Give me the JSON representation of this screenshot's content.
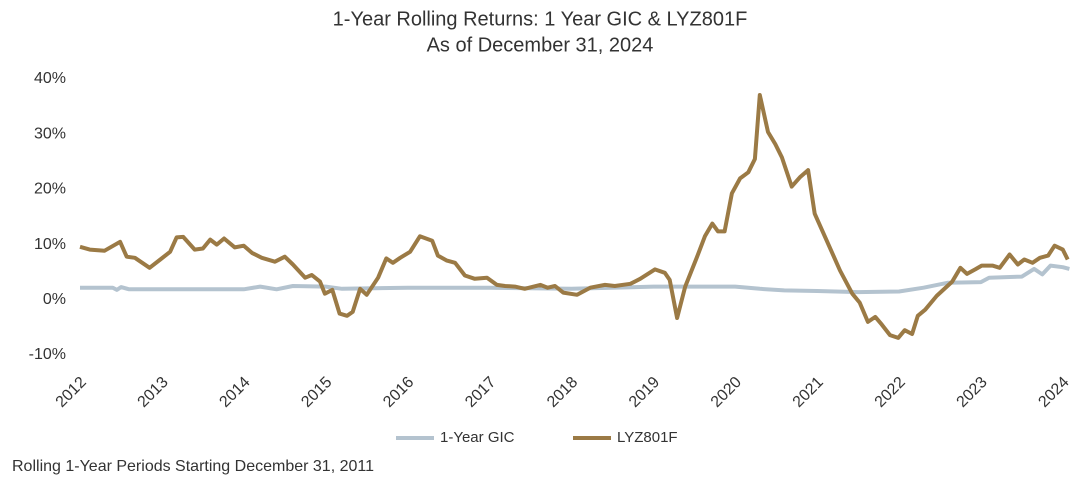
{
  "chart_data": {
    "type": "line",
    "title": "1-Year Rolling Returns: 1 Year GIC & LYZ801F",
    "subtitle": "As of December 31, 2024",
    "footnote": "Rolling 1-Year Periods Starting December 31, 2011",
    "xlim": [
      2012,
      2024.1
    ],
    "xticks": [
      2012,
      2013,
      2014,
      2015,
      2016,
      2017,
      2018,
      2019,
      2020,
      2021,
      2022,
      2023,
      2024
    ],
    "ylim": [
      -10,
      40
    ],
    "yticks": [
      {
        "value": -10,
        "label": "-10%"
      },
      {
        "value": 0,
        "label": "0%"
      },
      {
        "value": 10,
        "label": "10%"
      },
      {
        "value": 20,
        "label": "20%"
      },
      {
        "value": 30,
        "label": "30%"
      },
      {
        "value": 40,
        "label": "40%"
      }
    ],
    "grid": false,
    "series": [
      {
        "name": "1-Year GIC",
        "color": "#b4c3cf",
        "x": [
          2012.0,
          2012.4,
          2012.45,
          2012.5,
          2012.6,
          2014.0,
          2014.2,
          2014.4,
          2014.6,
          2015.0,
          2015.2,
          2016.0,
          2017.0,
          2018.0,
          2019.0,
          2020.0,
          2020.3,
          2020.6,
          2021.0,
          2021.5,
          2022.0,
          2022.3,
          2022.6,
          2023.0,
          2023.1,
          2023.5,
          2023.65,
          2023.75,
          2023.85,
          2024.0,
          2024.08
        ],
        "values": [
          2.2,
          2.2,
          1.8,
          2.3,
          1.9,
          1.9,
          2.4,
          1.9,
          2.5,
          2.4,
          2.0,
          2.2,
          2.2,
          2.0,
          2.4,
          2.4,
          2.0,
          1.7,
          1.6,
          1.4,
          1.5,
          2.2,
          3.1,
          3.2,
          4.0,
          4.2,
          5.6,
          4.6,
          6.2,
          5.9,
          5.6
        ]
      },
      {
        "name": "LYZ801F",
        "color": "#9b7a45",
        "x": [
          2012.0,
          2012.12,
          2012.3,
          2012.49,
          2012.57,
          2012.67,
          2012.85,
          2012.98,
          2013.1,
          2013.18,
          2013.26,
          2013.4,
          2013.5,
          2013.59,
          2013.67,
          2013.76,
          2013.89,
          2014.0,
          2014.1,
          2014.22,
          2014.38,
          2014.5,
          2014.6,
          2014.75,
          2014.83,
          2014.93,
          2014.99,
          2015.08,
          2015.17,
          2015.26,
          2015.33,
          2015.42,
          2015.5,
          2015.64,
          2015.74,
          2015.82,
          2015.91,
          2016.03,
          2016.15,
          2016.3,
          2016.37,
          2016.48,
          2016.58,
          2016.7,
          2016.82,
          2016.97,
          2017.09,
          2017.19,
          2017.31,
          2017.43,
          2017.62,
          2017.71,
          2017.8,
          2017.9,
          2018.07,
          2018.23,
          2018.41,
          2018.53,
          2018.72,
          2018.84,
          2019.02,
          2019.14,
          2019.2,
          2019.29,
          2019.39,
          2019.53,
          2019.63,
          2019.72,
          2019.79,
          2019.87,
          2019.96,
          2020.06,
          2020.16,
          2020.24,
          2020.3,
          2020.4,
          2020.49,
          2020.57,
          2020.69,
          2020.79,
          2020.89,
          2020.97,
          2021.1,
          2021.28,
          2021.43,
          2021.52,
          2021.62,
          2021.71,
          2021.79,
          2021.89,
          2021.99,
          2022.07,
          2022.16,
          2022.23,
          2022.32,
          2022.46,
          2022.65,
          2022.75,
          2022.83,
          2022.93,
          2023.01,
          2023.14,
          2023.23,
          2023.35,
          2023.45,
          2023.53,
          2023.63,
          2023.72,
          2023.82,
          2023.9,
          2024.0,
          2024.06
        ],
        "values": [
          9.6,
          9.1,
          8.9,
          10.5,
          7.8,
          7.6,
          5.8,
          7.3,
          8.7,
          11.3,
          11.4,
          9.1,
          9.3,
          10.9,
          10.0,
          11.1,
          9.5,
          9.8,
          8.5,
          7.6,
          6.9,
          7.8,
          6.4,
          4.0,
          4.5,
          3.3,
          1.1,
          1.8,
          -2.5,
          -2.9,
          -2.2,
          2.0,
          0.9,
          4.0,
          7.5,
          6.7,
          7.6,
          8.7,
          11.5,
          10.7,
          8.0,
          7.1,
          6.7,
          4.4,
          3.8,
          4.0,
          2.7,
          2.5,
          2.4,
          2.0,
          2.7,
          2.2,
          2.5,
          1.3,
          0.9,
          2.2,
          2.7,
          2.5,
          2.9,
          3.8,
          5.5,
          4.9,
          3.6,
          -3.3,
          2.4,
          7.6,
          11.5,
          13.8,
          12.4,
          12.4,
          19.3,
          22.0,
          23.1,
          25.5,
          37.1,
          30.4,
          28.2,
          25.8,
          20.5,
          22.2,
          23.5,
          15.6,
          11.3,
          5.3,
          1.1,
          -0.5,
          -4.0,
          -3.1,
          -4.5,
          -6.4,
          -6.9,
          -5.5,
          -6.2,
          -2.9,
          -1.8,
          0.7,
          3.3,
          5.8,
          4.7,
          5.5,
          6.2,
          6.2,
          5.8,
          8.2,
          6.4,
          7.3,
          6.7,
          7.6,
          8.0,
          9.8,
          9.1,
          7.3
        ]
      }
    ]
  }
}
